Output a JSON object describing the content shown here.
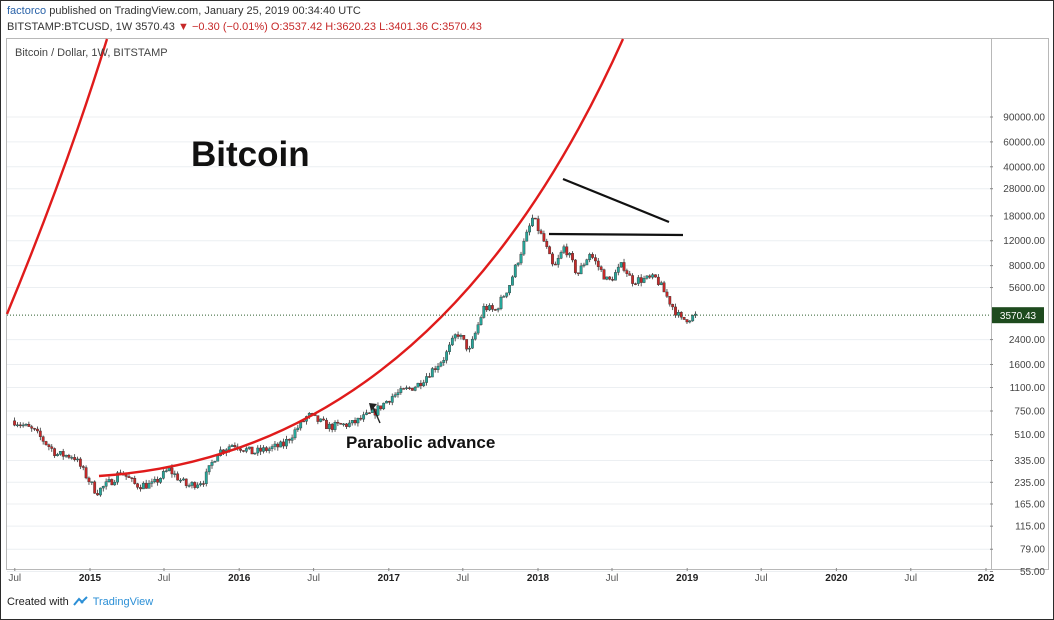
{
  "header": {
    "author": "factorco",
    "published_text": "published on TradingView.com, January 25, 2019 00:34:40 UTC",
    "symbol": "BITSTAMP:BTCUSD, 1W",
    "last": "3570.43",
    "change": "−0.30 (−0.01%)",
    "ohlc": "O:3537.42 H:3620.23 L:3401.36 C:3570.43"
  },
  "footer": {
    "created_with": "Created with",
    "brand": "TradingView"
  },
  "colors": {
    "up": "#26a69a",
    "down": "#c62828",
    "curve": "#e01b1b",
    "lastPriceBg": "#1e4b1e"
  },
  "chart_data": {
    "type": "candlestick",
    "title": "Bitcoin / Dollar, 1W, BITSTAMP",
    "annotation_main": "Bitcoin",
    "annotation_parabolic": "Parabolic advance",
    "last_price_label": "3570.43",
    "y_scale": "log",
    "y_ticks": [
      "90000.00",
      "60000.00",
      "40000.00",
      "28000.00",
      "18000.00",
      "12000.00",
      "8000.00",
      "5600.00",
      "3570.43",
      "2400.00",
      "1600.00",
      "1100.00",
      "750.00",
      "510.00",
      "335.00",
      "235.00",
      "165.00",
      "115.00",
      "79.00",
      "55.00"
    ],
    "x_ticks": [
      "Jul",
      "2015",
      "Jul",
      "2016",
      "Jul",
      "2017",
      "Jul",
      "2018",
      "Jul",
      "2019",
      "Jul",
      "2020",
      "Jul",
      "202"
    ],
    "weekly_close_path": [
      [
        "2014-06-28",
        640
      ],
      [
        "2014-08-15",
        540
      ],
      [
        "2014-10-10",
        370
      ],
      [
        "2014-11-20",
        360
      ],
      [
        "2015-01-14",
        200
      ],
      [
        "2015-02-20",
        240
      ],
      [
        "2015-03-15",
        280
      ],
      [
        "2015-04-20",
        225
      ],
      [
        "2015-06-01",
        225
      ],
      [
        "2015-07-10",
        290
      ],
      [
        "2015-08-25",
        220
      ],
      [
        "2015-10-05",
        245
      ],
      [
        "2015-11-05",
        380
      ],
      [
        "2015-12-15",
        440
      ],
      [
        "2016-02-01",
        380
      ],
      [
        "2016-04-15",
        430
      ],
      [
        "2016-06-15",
        700
      ],
      [
        "2016-08-05",
        580
      ],
      [
        "2016-10-01",
        610
      ],
      [
        "2016-11-25",
        740
      ],
      [
        "2017-01-05",
        950
      ],
      [
        "2017-03-10",
        1150
      ],
      [
        "2017-05-15",
        1800
      ],
      [
        "2017-06-15",
        2700
      ],
      [
        "2017-07-15",
        2000
      ],
      [
        "2017-08-20",
        4100
      ],
      [
        "2017-09-15",
        3800
      ],
      [
        "2017-10-20",
        5800
      ],
      [
        "2017-12-17",
        17500
      ],
      [
        "2018-01-15",
        11500
      ],
      [
        "2018-02-06",
        7500
      ],
      [
        "2018-03-05",
        11000
      ],
      [
        "2018-04-05",
        6900
      ],
      [
        "2018-05-05",
        9800
      ],
      [
        "2018-06-20",
        6100
      ],
      [
        "2018-07-25",
        8200
      ],
      [
        "2018-08-15",
        6300
      ],
      [
        "2018-10-15",
        6500
      ],
      [
        "2018-11-20",
        4300
      ],
      [
        "2018-12-15",
        3300
      ],
      [
        "2019-01-25",
        3570.43
      ]
    ]
  }
}
